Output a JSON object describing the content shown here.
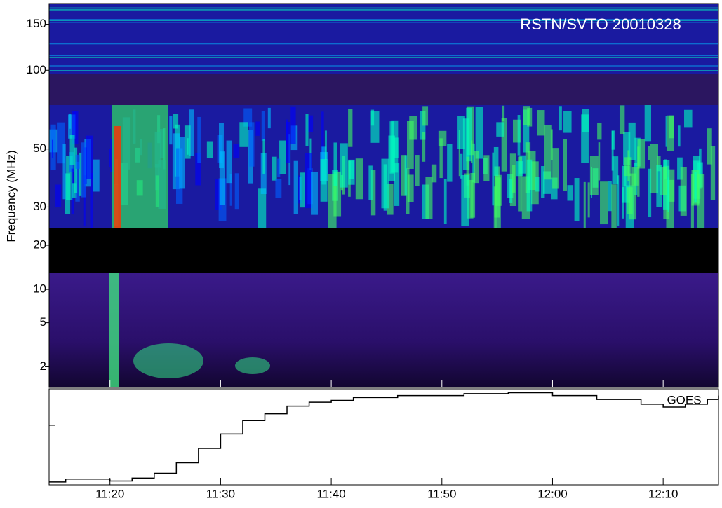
{
  "chart_data": {
    "type": "spectrogram",
    "title": "RSTN/SVTO 20010328",
    "ylabel": "Frequency (MHz)",
    "log_y": true,
    "panels": [
      {
        "ylim": [
          25,
          180
        ],
        "yticks": [
          150,
          100,
          50,
          30
        ]
      },
      {
        "ylim": [
          14,
          25
        ],
        "yticks": [
          20
        ]
      },
      {
        "ylim": [
          1.3,
          14
        ],
        "yticks": [
          10,
          5,
          2
        ]
      }
    ],
    "xlim": [
      674.5,
      735
    ],
    "xticks": [
      {
        "value": 680,
        "label": "11:20"
      },
      {
        "value": 690,
        "label": "11:30"
      },
      {
        "value": 700,
        "label": "11:40"
      },
      {
        "value": 710,
        "label": "11:50"
      },
      {
        "value": 720,
        "label": "12:00"
      },
      {
        "value": 730,
        "label": "12:10"
      }
    ],
    "goes": {
      "name": "GOES",
      "color": "#000000",
      "ylim": [
        0,
        1
      ],
      "x": [
        674.5,
        676,
        678,
        680,
        682,
        684,
        686,
        688,
        690,
        692,
        694,
        696,
        698,
        700,
        702,
        706,
        712,
        716,
        720,
        724,
        728,
        730,
        732,
        734,
        735
      ],
      "values": [
        0.03,
        0.06,
        0.06,
        0.04,
        0.07,
        0.12,
        0.23,
        0.38,
        0.53,
        0.67,
        0.74,
        0.82,
        0.86,
        0.88,
        0.91,
        0.93,
        0.95,
        0.96,
        0.93,
        0.89,
        0.84,
        0.81,
        0.84,
        0.89,
        0.93
      ]
    }
  }
}
